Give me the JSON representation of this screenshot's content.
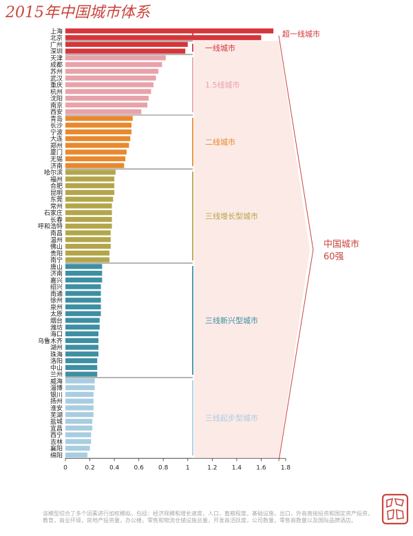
{
  "colors": {
    "title": "#c9443c",
    "tier_super": "#d4363a",
    "tier_1": "#d4363a",
    "tier_1_5": "#e7a3aa",
    "tier_2": "#e8892e",
    "tier_3_growth": "#b3a64a",
    "tier_3_emerging": "#3f8fa3",
    "tier_3_starting": "#a9cde0",
    "bracket_band": "#fbe6e2",
    "bracket_text": "#c9443c",
    "axis": "#333333"
  },
  "seal": {
    "label": "城市"
  },
  "chart_data": {
    "type": "bar",
    "orientation": "horizontal",
    "title": "2015年中国城市体系",
    "xlim": [
      0,
      1.8
    ],
    "xticks": [
      0,
      0.2,
      0.4,
      0.6,
      0.8,
      1,
      1.2,
      1.4,
      1.6,
      1.8
    ],
    "xtick_labels": [
      "0",
      "0.2",
      "0.4",
      "0.6",
      "0.8",
      "1",
      "1.2",
      "1.4",
      "1.6",
      "1.8"
    ],
    "tiers": [
      {
        "name": "超一线城市",
        "color": "#d4363a",
        "categories": [
          "上海",
          "北京"
        ],
        "values": [
          1.7,
          1.6
        ]
      },
      {
        "name": "一线城市",
        "color": "#d4363a",
        "categories": [
          "广州",
          "深圳"
        ],
        "values": [
          1.0,
          0.98
        ]
      },
      {
        "name": "1.5线城市",
        "color": "#e7a3aa",
        "categories": [
          "天津",
          "成都",
          "苏州",
          "武汉",
          "重庆",
          "杭州",
          "沈阳",
          "南京",
          "西安"
        ],
        "values": [
          0.82,
          0.79,
          0.76,
          0.74,
          0.72,
          0.7,
          0.68,
          0.67,
          0.62
        ]
      },
      {
        "name": "二线城市",
        "color": "#e8892e",
        "categories": [
          "青岛",
          "长沙",
          "宁波",
          "大连",
          "郑州",
          "厦门",
          "无锡",
          "济南"
        ],
        "values": [
          0.55,
          0.54,
          0.54,
          0.53,
          0.52,
          0.5,
          0.49,
          0.48
        ]
      },
      {
        "name": "三线增长型城市",
        "color": "#b3a64a",
        "categories": [
          "哈尔滨",
          "福州",
          "合肥",
          "昆明",
          "东莞",
          "常州",
          "石家庄",
          "长春",
          "呼和浩特",
          "南昌",
          "温州",
          "佛山",
          "贵阳",
          "南宁"
        ],
        "values": [
          0.41,
          0.4,
          0.4,
          0.4,
          0.39,
          0.38,
          0.38,
          0.38,
          0.38,
          0.37,
          0.37,
          0.37,
          0.36,
          0.36
        ]
      },
      {
        "name": "三线新兴型城市",
        "color": "#3f8fa3",
        "categories": [
          "唐山",
          "济南",
          "嘉兴",
          "绍兴",
          "南通",
          "徐州",
          "泉州",
          "太原",
          "烟台",
          "潍坊",
          "海口",
          "乌鲁木齐",
          "湖州",
          "珠海",
          "洛阳",
          "中山",
          "兰州"
        ],
        "values": [
          0.3,
          0.3,
          0.3,
          0.29,
          0.29,
          0.29,
          0.29,
          0.29,
          0.28,
          0.28,
          0.27,
          0.27,
          0.27,
          0.27,
          0.26,
          0.26,
          0.26
        ]
      },
      {
        "name": "三线起步型城市",
        "color": "#a9cde0",
        "categories": [
          "威海",
          "淄博",
          "银川",
          "扬州",
          "淮安",
          "芜湖",
          "盐城",
          "宜昌",
          "西宁",
          "吉林",
          "襄阳",
          "绵阳"
        ],
        "values": [
          0.24,
          0.24,
          0.23,
          0.23,
          0.23,
          0.23,
          0.22,
          0.22,
          0.21,
          0.21,
          0.2,
          0.18
        ]
      }
    ],
    "bracket_label": [
      "中国城市",
      "60强"
    ],
    "footnote": "该模型综合了多个因素进行加权模拟，包括：经济规模和增长速度，人口，畜粮程度，基础设施，出口，外商直接投资和国定资产投资，教育，商业环境，房地产投资量，办公楼，零售和物流仓储设施总量，开发商活跃度，公司数量，零售商数量以及国际品牌酒店。"
  }
}
